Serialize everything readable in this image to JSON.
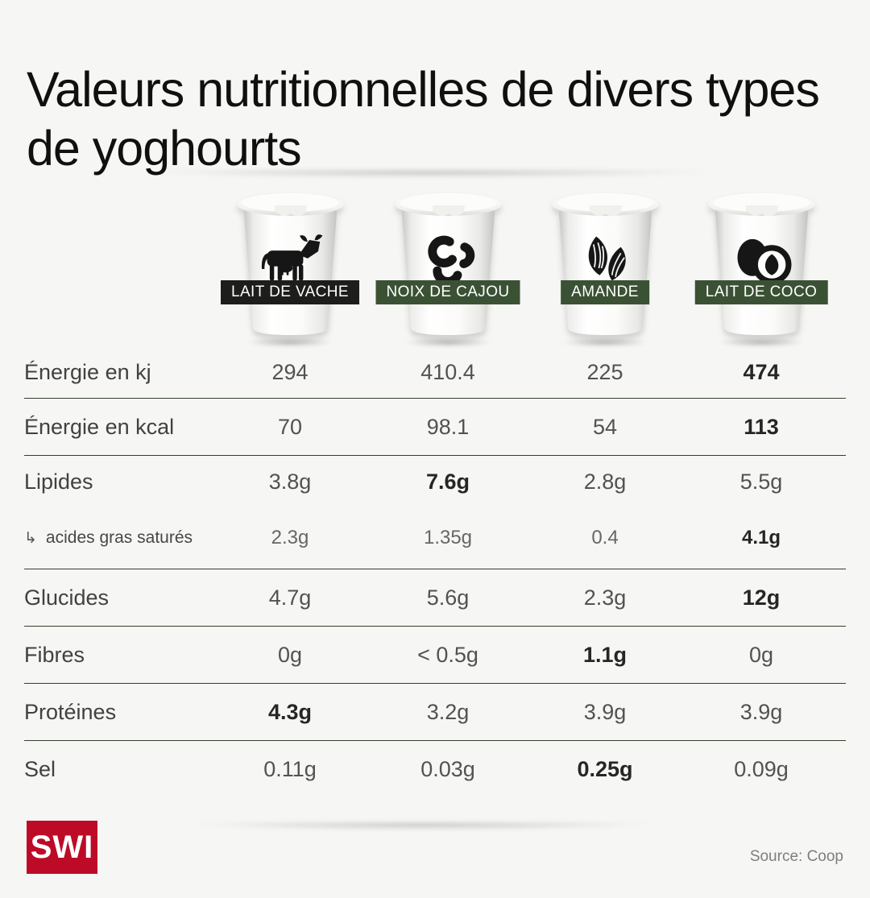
{
  "page": {
    "title": "Valeurs nutritionnelles de divers types de yoghourts",
    "background": "#f6f6f4"
  },
  "products": [
    {
      "icon": "cow-icon",
      "badge_bg": "#1d1d1b"
    },
    {
      "icon": "cashew-icon",
      "badge_bg": "#3b5134"
    },
    {
      "icon": "almond-icon",
      "badge_bg": "#3b5134"
    },
    {
      "icon": "coconut-icon",
      "badge_bg": "#3b5134"
    }
  ],
  "chart_data": {
    "type": "table",
    "title": "Valeurs nutritionnelles de divers types de yoghourts",
    "columns": [
      "LAIT DE VACHE",
      "NOIX DE CAJOU",
      "AMANDE",
      "LAIT DE COCO"
    ],
    "rows": [
      {
        "label": "Énergie en kj",
        "values": [
          "294",
          "410.4",
          "225",
          "474"
        ],
        "bold": [
          false,
          false,
          false,
          true
        ],
        "sub": false,
        "divider_before": false
      },
      {
        "label": "Énergie en kcal",
        "values": [
          "70",
          "98.1",
          "54",
          "113"
        ],
        "bold": [
          false,
          false,
          false,
          true
        ],
        "sub": false,
        "divider_before": true
      },
      {
        "label": "Lipides",
        "values": [
          "3.8g",
          "7.6g",
          "2.8g",
          "5.5g"
        ],
        "bold": [
          false,
          true,
          false,
          false
        ],
        "sub": false,
        "divider_before": true
      },
      {
        "label": "acides gras saturés",
        "values": [
          "2.3g",
          "1.35g",
          "0.4",
          "4.1g"
        ],
        "bold": [
          false,
          false,
          false,
          true
        ],
        "sub": true,
        "prefix": "↳",
        "divider_before": false
      },
      {
        "label": "Glucides",
        "values": [
          "4.7g",
          "5.6g",
          "2.3g",
          "12g"
        ],
        "bold": [
          false,
          false,
          false,
          true
        ],
        "sub": false,
        "divider_before": true
      },
      {
        "label": "Fibres",
        "values": [
          "0g",
          "< 0.5g",
          "1.1g",
          "0g"
        ],
        "bold": [
          false,
          false,
          true,
          false
        ],
        "sub": false,
        "divider_before": true
      },
      {
        "label": "Protéines",
        "values": [
          "4.3g",
          "3.2g",
          "3.9g",
          "3.9g"
        ],
        "bold": [
          true,
          false,
          false,
          false
        ],
        "sub": false,
        "divider_before": true
      },
      {
        "label": "Sel",
        "values": [
          "0.11g",
          "0.03g",
          "0.25g",
          "0.09g"
        ],
        "bold": [
          false,
          false,
          true,
          false
        ],
        "sub": false,
        "divider_before": true
      }
    ],
    "source": "Source: Coop"
  },
  "footer": {
    "logo_text": "SWI",
    "logo_bg": "#bd0b27",
    "source": "Source: Coop"
  },
  "colors": {
    "divider": "#33402d",
    "accent_green": "#3b5134",
    "accent_black": "#1d1d1b",
    "logo_red": "#bd0b27"
  }
}
